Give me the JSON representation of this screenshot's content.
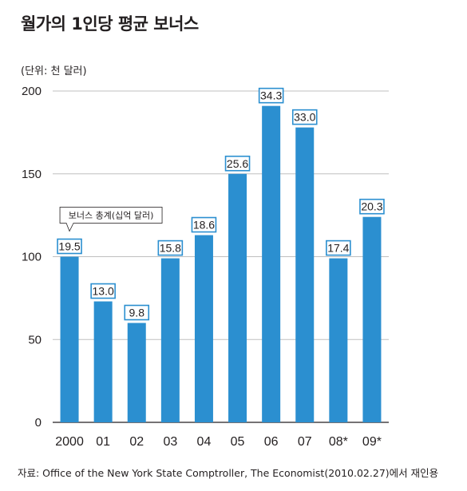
{
  "title": "월가의 1인당 평균 보너스",
  "unit_label": "(단위: 천 달러)",
  "source": "자료: Office of the New York State Comptroller, The Economist(2010.02.27)에서 재인용",
  "colors": {
    "bar": "#2b8fd0",
    "label_border": "#2b8fd0",
    "grid": "#bfbfbf",
    "axis": "#231f20"
  },
  "chart_data": {
    "type": "bar",
    "title": "월가의 1인당 평균 보너스",
    "ylabel": "(단위: 천 달러)",
    "categories": [
      "2000",
      "01",
      "02",
      "03",
      "04",
      "05",
      "06",
      "07",
      "08*",
      "09*"
    ],
    "values": [
      100,
      73,
      60,
      99,
      113,
      150,
      191,
      178,
      99,
      124
    ],
    "data_labels": [
      "19.5",
      "13.0",
      "9.8",
      "15.8",
      "18.6",
      "25.6",
      "34.3",
      "33.0",
      "17.4",
      "20.3"
    ],
    "data_label_name": "보너스 총계(십억 달러)",
    "yticks": [
      0,
      50,
      100,
      150,
      200
    ],
    "ylim": [
      0,
      200
    ],
    "grid": true,
    "legend": "none"
  }
}
